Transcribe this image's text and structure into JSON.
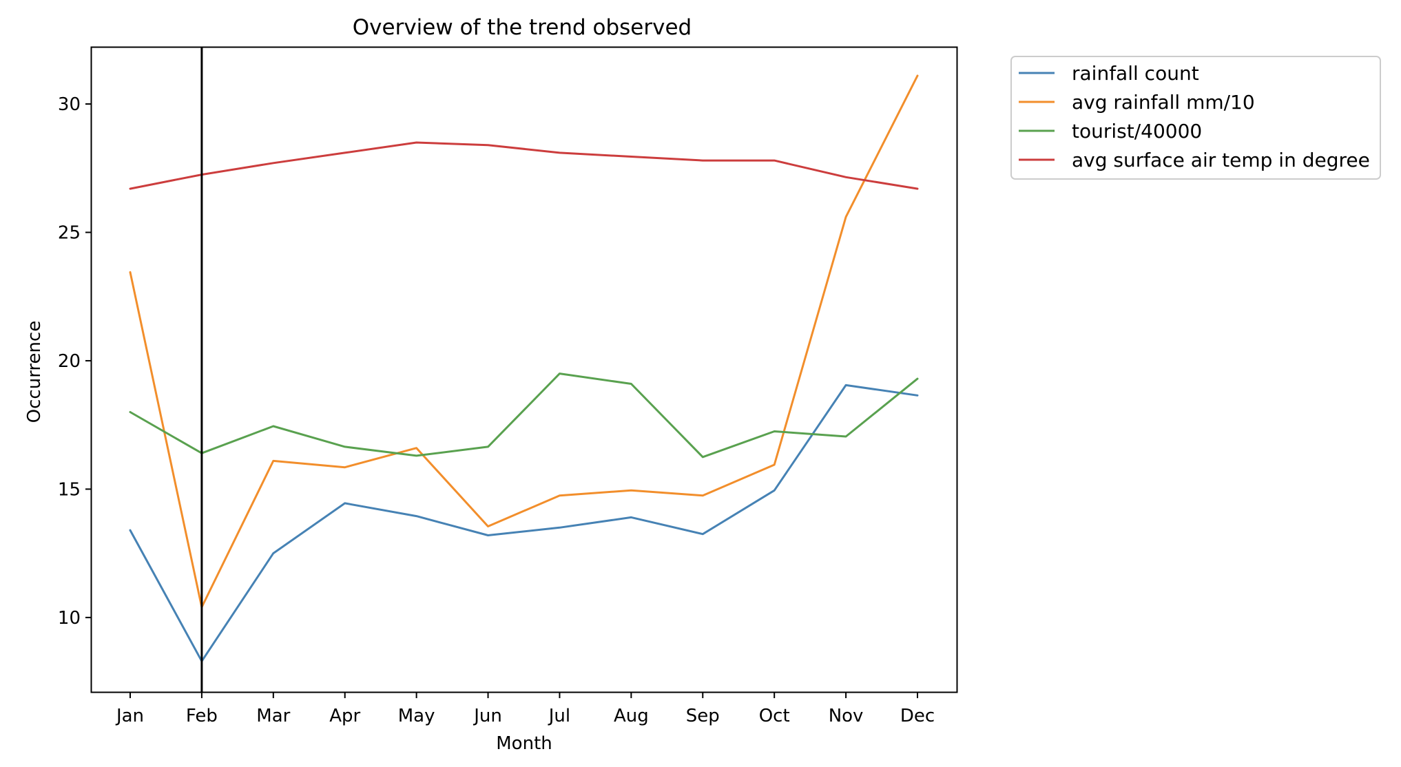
{
  "chart_data": {
    "type": "line",
    "title": "Overview of the trend observed",
    "xlabel": "Month",
    "ylabel": "Occurrence",
    "categories": [
      "Jan",
      "Feb",
      "Mar",
      "Apr",
      "May",
      "Jun",
      "Jul",
      "Aug",
      "Sep",
      "Oct",
      "Nov",
      "Dec"
    ],
    "yticks": [
      10,
      15,
      20,
      25,
      30
    ],
    "ylim": [
      7.1,
      32.2
    ],
    "grid": false,
    "legend_position": "outside top-right",
    "vertical_marker": "Feb",
    "vertical_marker_color": "#000000",
    "series": [
      {
        "name": "rainfall count",
        "color": "#4682b4",
        "values": [
          13.4,
          8.3,
          12.5,
          14.45,
          13.95,
          13.2,
          13.5,
          13.9,
          13.25,
          14.95,
          19.05,
          18.65
        ]
      },
      {
        "name": "avg rainfall mm/10",
        "color": "#f28e2b",
        "values": [
          23.45,
          10.4,
          16.1,
          15.85,
          16.6,
          13.55,
          14.75,
          14.95,
          14.75,
          15.95,
          25.6,
          31.1
        ]
      },
      {
        "name": "tourist/40000",
        "color": "#59a14f",
        "values": [
          18.0,
          16.4,
          17.45,
          16.65,
          16.3,
          16.65,
          19.5,
          19.1,
          16.25,
          17.25,
          17.05,
          19.3
        ]
      },
      {
        "name": "avg surface air temp in degree",
        "color": "#cc3d3d",
        "values": [
          26.7,
          27.25,
          27.7,
          28.1,
          28.5,
          28.4,
          28.1,
          27.95,
          27.8,
          27.8,
          27.15,
          26.7
        ]
      }
    ]
  }
}
